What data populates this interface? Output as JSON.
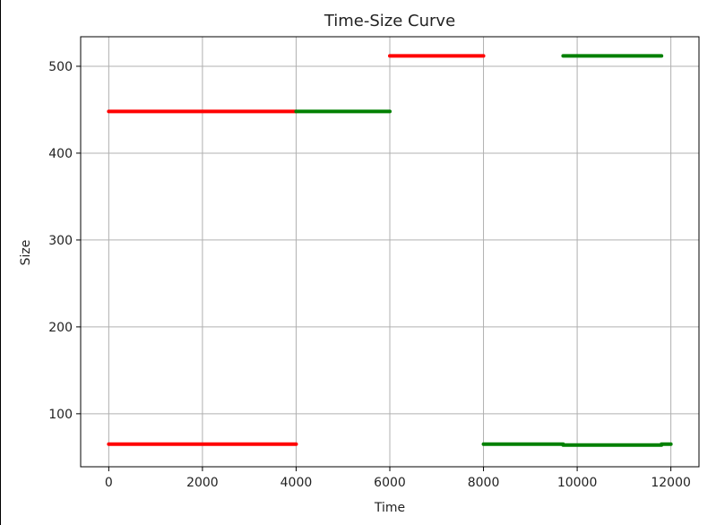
{
  "chart_data": {
    "type": "line",
    "title": "Time-Size Curve",
    "xlabel": "Time",
    "ylabel": "Size",
    "xlim": [
      -600,
      12600
    ],
    "ylim": [
      39,
      534
    ],
    "xticks": [
      0,
      2000,
      4000,
      6000,
      8000,
      10000,
      12000
    ],
    "xtick_labels": [
      "0",
      "2000",
      "4000",
      "6000",
      "8000",
      "10000",
      "12000"
    ],
    "yticks": [
      100,
      200,
      300,
      400,
      500
    ],
    "ytick_labels": [
      "100",
      "200",
      "300",
      "400",
      "500"
    ],
    "grid": true,
    "legend": "none",
    "colors": {
      "red": "#ff0000",
      "green": "#008000",
      "grid": "#b0b0b0",
      "axes": "#000000"
    },
    "segments": [
      {
        "color": "red",
        "x": [
          0,
          4000
        ],
        "y": [
          448,
          448
        ]
      },
      {
        "color": "red",
        "x": [
          0,
          4000
        ],
        "y": [
          65,
          65
        ]
      },
      {
        "color": "green",
        "x": [
          4000,
          6000
        ],
        "y": [
          448,
          448
        ]
      },
      {
        "color": "red",
        "x": [
          6000,
          8000
        ],
        "y": [
          512,
          512
        ]
      },
      {
        "color": "green",
        "x": [
          9700,
          11800
        ],
        "y": [
          512,
          512
        ]
      },
      {
        "color": "green",
        "x": [
          8000,
          9700
        ],
        "y": [
          65,
          65
        ]
      },
      {
        "color": "green",
        "x": [
          9700,
          11800
        ],
        "y": [
          64,
          64
        ]
      },
      {
        "color": "green",
        "x": [
          11800,
          12000
        ],
        "y": [
          65,
          65
        ]
      }
    ]
  }
}
